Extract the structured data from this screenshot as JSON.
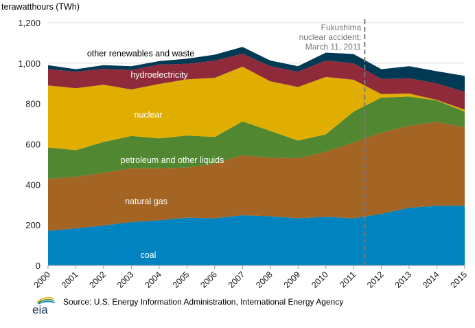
{
  "chart_data": {
    "type": "area",
    "stacked": true,
    "title": "",
    "ylabel": "terawatthours (TWh)",
    "xlabel": "",
    "ylim": [
      0,
      1200
    ],
    "yticks": [
      0,
      200,
      400,
      600,
      800,
      1000,
      1200
    ],
    "ytick_labels": [
      "0",
      "200",
      "400",
      "600",
      "800",
      "1,000",
      "1,200"
    ],
    "grid": true,
    "x": [
      2000,
      2001,
      2002,
      2003,
      2004,
      2005,
      2006,
      2007,
      2008,
      2009,
      2010,
      2011,
      2012,
      2013,
      2014,
      2015
    ],
    "xtick_labels": [
      "2000",
      "2001",
      "2002",
      "2003",
      "2004",
      "2005",
      "2006",
      "2007",
      "2008",
      "2009",
      "2010",
      "2011",
      "2012",
      "2013",
      "2014",
      "2015"
    ],
    "series": [
      {
        "name": "coal",
        "label": "coal",
        "color": "#0083BE",
        "values": [
          171,
          183,
          197,
          214,
          223,
          236,
          233,
          248,
          243,
          233,
          240,
          233,
          255,
          285,
          295,
          295
        ]
      },
      {
        "name": "natural gas",
        "label": "natural gas",
        "color": "#A46423",
        "values": [
          257,
          255,
          261,
          266,
          257,
          248,
          270,
          297,
          290,
          297,
          322,
          375,
          402,
          405,
          415,
          388
        ]
      },
      {
        "name": "petroleum and other liquids",
        "label": "petroleum  and other liquids",
        "color": "#518730",
        "values": [
          155,
          132,
          152,
          160,
          148,
          158,
          132,
          167,
          132,
          87,
          86,
          152,
          173,
          145,
          105,
          77
        ]
      },
      {
        "name": "nuclear",
        "label": "nuclear",
        "color": "#E0AE00",
        "values": [
          307,
          306,
          283,
          230,
          269,
          278,
          292,
          271,
          245,
          265,
          284,
          158,
          17,
          15,
          3,
          10
        ]
      },
      {
        "name": "hydroelectricity",
        "label": "hydroelectricity",
        "color": "#8E2A3A",
        "values": [
          80,
          82,
          79,
          96,
          96,
          77,
          85,
          64,
          75,
          76,
          81,
          82,
          75,
          75,
          82,
          88
        ]
      },
      {
        "name": "other renewables and waste",
        "label": "other renewables  and waste",
        "color": "#003953",
        "values": [
          20,
          12,
          18,
          19,
          17,
          25,
          30,
          33,
          28,
          27,
          39,
          45,
          48,
          60,
          60,
          79
        ]
      }
    ],
    "annotations": [
      {
        "text": [
          "Fukushima",
          "nuclear accident:",
          "March 11, 2011"
        ],
        "x": 2011.4,
        "style": "dashed-vertical-line"
      }
    ]
  },
  "source_text": "Source: U.S. Energy Information Administration, International Energy Agency",
  "logo_text": "eia"
}
